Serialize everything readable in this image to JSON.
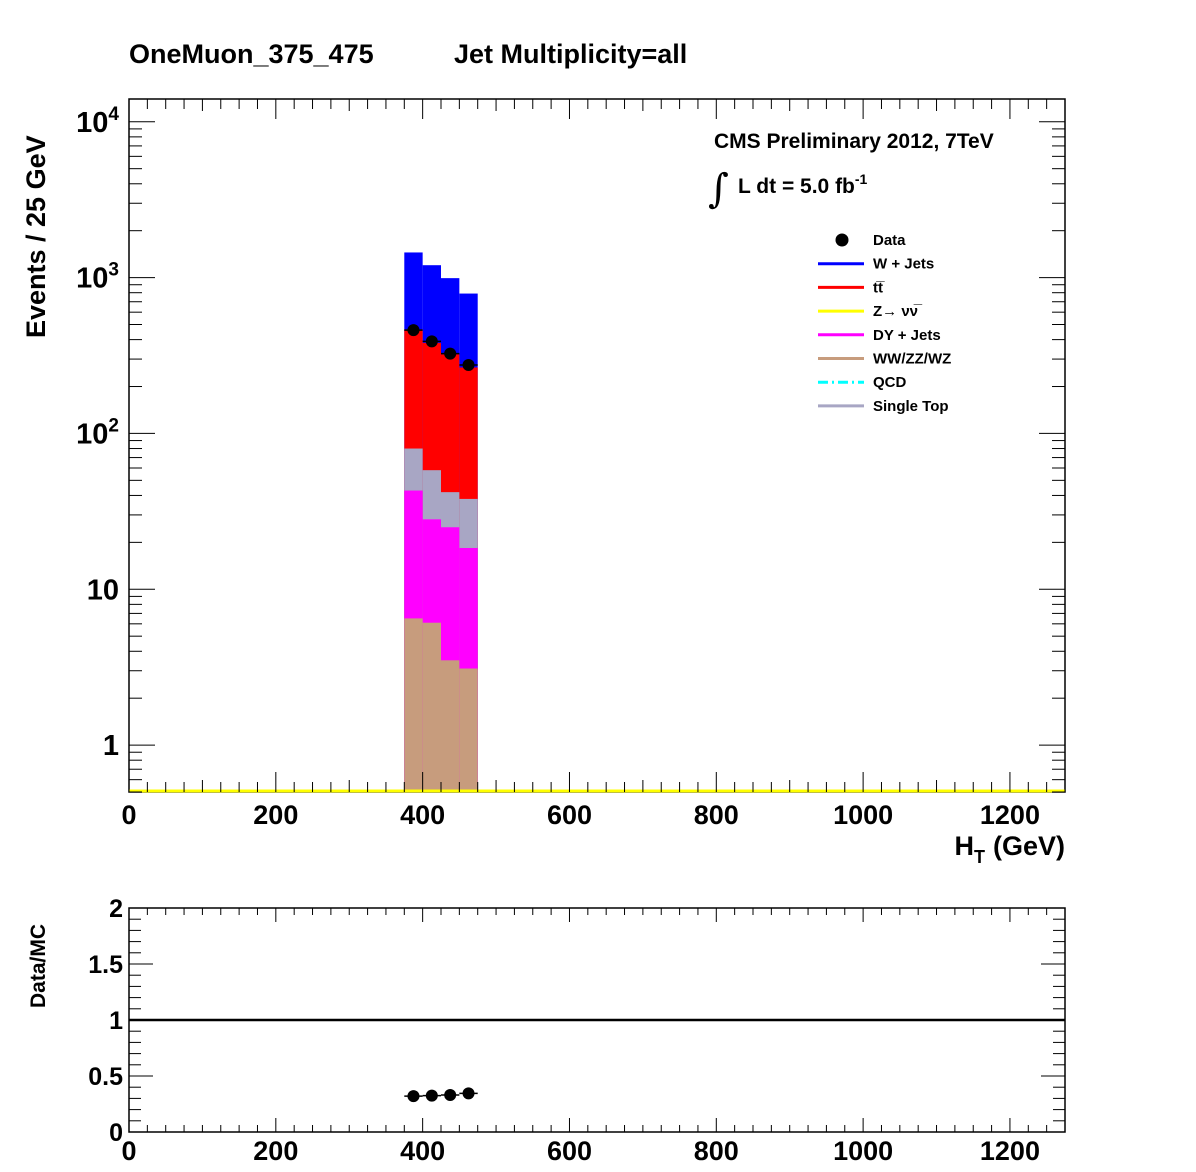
{
  "header": {
    "selection": "OneMuon_375_475",
    "jet_multiplicity": "Jet Multiplicity=all"
  },
  "annotation": {
    "line1": "CMS Preliminary 2012, 7TeV",
    "lumi": "L dt = 5.0 fb",
    "lumi_exp": "-1"
  },
  "colors": {
    "data": "#000000",
    "wjets": "#0000ff",
    "ttbar": "#ff0000",
    "zinv": "#ffff00",
    "dy": "#ff00ff",
    "diboson": "#c79c7d",
    "qcd": "#00ffff",
    "singletop": "#a8a6c4"
  },
  "legend": {
    "placement": "top-right",
    "entries": [
      {
        "key": "data",
        "label": "Data",
        "style": "marker"
      },
      {
        "key": "wjets",
        "label": "W + Jets",
        "style": "line"
      },
      {
        "key": "ttbar",
        "label": "tt̅",
        "style": "line"
      },
      {
        "key": "zinv",
        "label": "Z→ νν̅",
        "style": "line"
      },
      {
        "key": "dy",
        "label": "DY + Jets",
        "style": "line"
      },
      {
        "key": "diboson",
        "label": "WW/ZZ/WZ",
        "style": "line"
      },
      {
        "key": "qcd",
        "label": "QCD",
        "style": "dashdot"
      },
      {
        "key": "singletop",
        "label": "Single Top",
        "style": "line"
      }
    ]
  },
  "chart_data": [
    {
      "type": "bar",
      "stacked": true,
      "log_y": true,
      "ylabel": "Events / 25 GeV",
      "xlabel": "H",
      "xlabel_sub": "T",
      "xlabel_unit": "(GeV)",
      "xlim": [
        0,
        1275
      ],
      "ylim": [
        0.5,
        14000
      ],
      "xticks": [
        0,
        200,
        400,
        600,
        800,
        1000,
        1200
      ],
      "yticks": [
        {
          "value": 1,
          "label": "1",
          "exp": ""
        },
        {
          "value": 10,
          "label": "10",
          "exp": ""
        },
        {
          "value": 100,
          "label": "10",
          "exp": "2"
        },
        {
          "value": 1000,
          "label": "10",
          "exp": "3"
        },
        {
          "value": 10000,
          "label": "10",
          "exp": "4"
        }
      ],
      "bin_edges": [
        375,
        400,
        425,
        450,
        475
      ],
      "stack_order": [
        "diboson",
        "dy",
        "singletop",
        "ttbar",
        "wjets"
      ],
      "series": [
        {
          "name": "WW/ZZ/WZ",
          "key": "diboson",
          "values": [
            6.5,
            6.1,
            3.5,
            3.1
          ]
        },
        {
          "name": "DY + Jets",
          "key": "dy",
          "values": [
            36.5,
            22.0,
            21.5,
            15.3
          ]
        },
        {
          "name": "Single Top",
          "key": "singletop",
          "values": [
            37.0,
            30.0,
            17.0,
            19.6
          ]
        },
        {
          "name": "t̅t",
          "key": "ttbar",
          "values": [
            385,
            323,
            280,
            227
          ]
        },
        {
          "name": "W + Jets",
          "key": "wjets",
          "values": [
            985,
            820,
            670,
            525
          ]
        },
        {
          "name": "Z→ νν̅",
          "key": "zinv",
          "values": [
            0,
            0,
            0,
            0
          ]
        },
        {
          "name": "QCD",
          "key": "qcd",
          "values": [
            0,
            0,
            0,
            0
          ]
        }
      ],
      "data": {
        "name": "Data",
        "x": [
          387.5,
          412.5,
          437.5,
          462.5
        ],
        "y": [
          460,
          390,
          325,
          275
        ]
      }
    },
    {
      "type": "scatter",
      "ylabel": "Data/MC",
      "xlim": [
        0,
        1275
      ],
      "ylim": [
        0,
        2
      ],
      "xticks": [
        0,
        200,
        400,
        600,
        800,
        1000,
        1200
      ],
      "yticks": [
        {
          "value": 0,
          "label": "0"
        },
        {
          "value": 0.5,
          "label": "0.5"
        },
        {
          "value": 1,
          "label": "1"
        },
        {
          "value": 1.5,
          "label": "1.5"
        },
        {
          "value": 2,
          "label": "2"
        }
      ],
      "reference_line": 1,
      "x": [
        387.5,
        412.5,
        437.5,
        462.5
      ],
      "y": [
        0.32,
        0.325,
        0.33,
        0.345
      ]
    }
  ]
}
